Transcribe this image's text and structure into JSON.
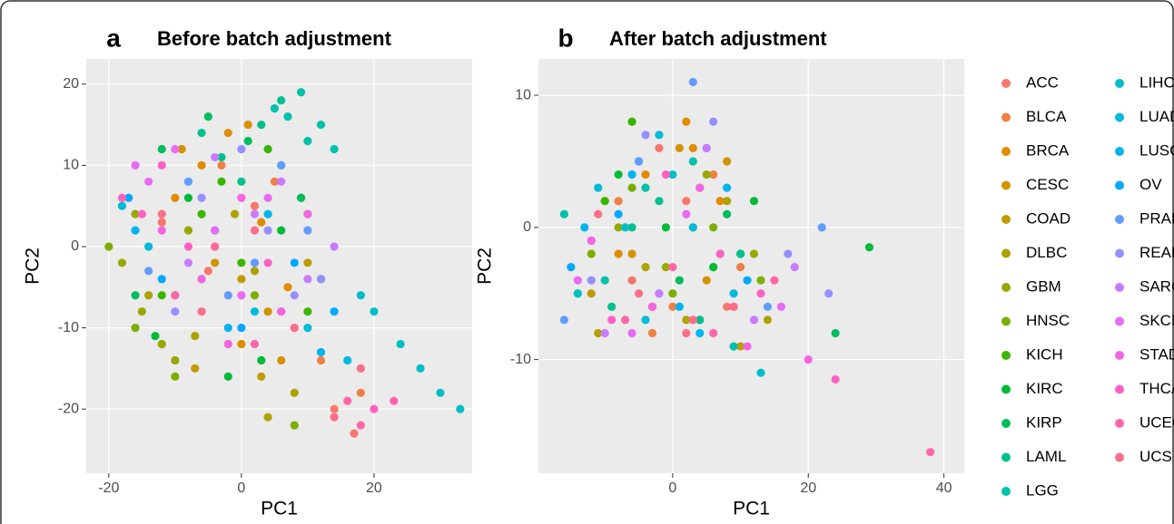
{
  "chart_data": [
    {
      "type": "scatter",
      "panel": "a",
      "title": "Before batch adjustment",
      "xlabel": "PC1",
      "ylabel": "PC2",
      "xlim": [
        -23.4,
        34.8
      ],
      "ylim": [
        -27.9,
        23.1
      ],
      "xticks": [
        -20,
        0,
        20
      ],
      "yticks": [
        -20,
        -10,
        0,
        10,
        20
      ],
      "grid": true,
      "series": [
        {
          "x": [
            -5,
            2,
            8,
            14,
            17,
            -12
          ],
          "values": [
            -3,
            5,
            -10,
            -20,
            -23,
            3
          ]
        },
        {
          "x": [
            -8,
            0,
            5,
            12,
            18,
            -3
          ],
          "values": [
            2,
            -6,
            8,
            -14,
            -18,
            10
          ]
        },
        {
          "x": [
            -6,
            -2,
            3,
            7,
            -10,
            0
          ],
          "values": [
            10,
            14,
            3,
            -5,
            6,
            -12
          ]
        },
        {
          "x": [
            -4,
            4,
            9,
            -9,
            1,
            6
          ],
          "values": [
            -2,
            -8,
            6,
            12,
            15,
            -14
          ]
        },
        {
          "x": [
            -2,
            3,
            6,
            0,
            -7,
            10
          ],
          "values": [
            -12,
            -16,
            -8,
            -4,
            -15,
            -2
          ]
        },
        {
          "x": [
            -14,
            -7,
            2,
            8,
            4,
            -1
          ],
          "values": [
            -6,
            -11,
            -3,
            -18,
            -21,
            4
          ]
        },
        {
          "x": [
            -18,
            -15,
            -12,
            -8,
            -10,
            -16
          ],
          "values": [
            -2,
            -8,
            -12,
            2,
            -14,
            4
          ]
        },
        {
          "x": [
            -16,
            -10,
            -4,
            2,
            8,
            -20
          ],
          "values": [
            -10,
            -16,
            0,
            -6,
            -22,
            0
          ]
        },
        {
          "x": [
            -6,
            -3,
            0,
            4,
            10,
            -12
          ],
          "values": [
            4,
            8,
            -2,
            12,
            -8,
            -6
          ]
        },
        {
          "x": [
            -2,
            -8,
            6,
            3,
            -13,
            12
          ],
          "values": [
            -16,
            6,
            2,
            -14,
            -11,
            -4
          ]
        },
        {
          "x": [
            -12,
            -5,
            1,
            6,
            -16,
            9
          ],
          "values": [
            12,
            16,
            13,
            10,
            -6,
            6
          ]
        },
        {
          "x": [
            -3,
            3,
            6,
            -6,
            0,
            10
          ],
          "values": [
            11,
            15,
            18,
            14,
            8,
            4
          ]
        },
        {
          "x": [
            5,
            9,
            12,
            14,
            10,
            7
          ],
          "values": [
            17,
            19,
            15,
            12,
            13,
            16
          ]
        },
        {
          "x": [
            20,
            24,
            27,
            30,
            33,
            18
          ],
          "values": [
            -8,
            -12,
            -15,
            -18,
            -20,
            -6
          ]
        },
        {
          "x": [
            -14,
            -6,
            2,
            10,
            -18,
            16
          ],
          "values": [
            0,
            -4,
            -8,
            -10,
            5,
            -14
          ]
        },
        {
          "x": [
            -16,
            -10,
            -2,
            4,
            12,
            -8
          ],
          "values": [
            2,
            -6,
            -10,
            4,
            -13,
            8
          ]
        },
        {
          "x": [
            -12,
            -4,
            0,
            8,
            14,
            -17
          ],
          "values": [
            -4,
            2,
            -10,
            -2,
            -8,
            6
          ]
        },
        {
          "x": [
            -8,
            2,
            6,
            10,
            -2,
            -14
          ],
          "values": [
            8,
            -2,
            10,
            2,
            -6,
            -3
          ]
        },
        {
          "x": [
            -6,
            0,
            4,
            8,
            12,
            -10
          ],
          "values": [
            6,
            12,
            2,
            -6,
            -4,
            -8
          ]
        },
        {
          "x": [
            -8,
            2,
            6,
            10,
            -4,
            14
          ],
          "values": [
            -2,
            4,
            8,
            -4,
            11,
            0
          ]
        },
        {
          "x": [
            -14,
            -10,
            -4,
            4,
            -16,
            0
          ],
          "values": [
            8,
            12,
            2,
            6,
            10,
            -6
          ]
        },
        {
          "x": [
            -12,
            -6,
            0,
            6,
            -2,
            10
          ],
          "values": [
            2,
            -4,
            6,
            -8,
            -12,
            4
          ]
        },
        {
          "x": [
            -18,
            -15,
            -12,
            -8,
            4,
            20
          ],
          "values": [
            6,
            4,
            10,
            0,
            -2,
            -20
          ]
        },
        {
          "x": [
            -10,
            -4,
            2,
            16,
            18,
            23
          ],
          "values": [
            -6,
            0,
            -12,
            -19,
            -22,
            -19
          ]
        },
        {
          "x": [
            -12,
            -6,
            2,
            8,
            14,
            18
          ],
          "values": [
            4,
            -8,
            2,
            -10,
            -21,
            -15
          ]
        }
      ]
    },
    {
      "type": "scatter",
      "panel": "b",
      "title": "After batch adjustment",
      "xlabel": "PC1",
      "ylabel": "PC2",
      "xlim": [
        -19.8,
        43
      ],
      "ylim": [
        -18.6,
        12.75
      ],
      "xticks": [
        0,
        20,
        40
      ],
      "yticks": [
        -10,
        0,
        10
      ],
      "grid": true,
      "series": [
        {
          "x": [
            -6,
            2,
            8,
            -2,
            4
          ],
          "values": [
            -4,
            2,
            -6,
            6,
            -7
          ]
        },
        {
          "x": [
            -8,
            0,
            6,
            -3,
            10
          ],
          "values": [
            2,
            -6,
            4,
            -8,
            -3
          ]
        },
        {
          "x": [
            -4,
            2,
            7,
            -8,
            3
          ],
          "values": [
            4,
            8,
            2,
            -2,
            6
          ]
        },
        {
          "x": [
            -6,
            1,
            5,
            -10,
            8
          ],
          "values": [
            -2,
            6,
            -4,
            2,
            5
          ]
        },
        {
          "x": [
            -3,
            3,
            10,
            -12,
            6
          ],
          "values": [
            -6,
            0,
            -9,
            -5,
            -3
          ]
        },
        {
          "x": [
            -11,
            -4,
            2,
            8,
            14
          ],
          "values": [
            -8,
            -3,
            -7,
            2,
            -7
          ]
        },
        {
          "x": [
            -14,
            -8,
            -1,
            5,
            12
          ],
          "values": [
            -5,
            0,
            -3,
            4,
            -2
          ]
        },
        {
          "x": [
            -12,
            -6,
            0,
            6,
            13
          ],
          "values": [
            -2,
            3,
            -5,
            0,
            -4
          ]
        },
        {
          "x": [
            -10,
            -3,
            4,
            10,
            -6
          ],
          "values": [
            2,
            -6,
            3,
            -2,
            8
          ]
        },
        {
          "x": [
            -8,
            -1,
            6,
            12,
            29
          ],
          "values": [
            4,
            0,
            -3,
            2,
            -1.5
          ]
        },
        {
          "x": [
            -12,
            -5,
            1,
            8,
            24
          ],
          "values": [
            -1,
            5,
            -4,
            1,
            -8
          ]
        },
        {
          "x": [
            -9,
            -2,
            4,
            10,
            -6
          ],
          "values": [
            -6,
            2,
            -7,
            -2,
            0
          ]
        },
        {
          "x": [
            -16,
            -10,
            -4,
            3,
            9
          ],
          "values": [
            1,
            -4,
            3,
            5,
            -9
          ]
        },
        {
          "x": [
            -14,
            -7,
            0,
            7,
            13
          ],
          "values": [
            -5,
            0,
            4,
            -2,
            -11
          ]
        },
        {
          "x": [
            -11,
            -4,
            3,
            9,
            -2
          ],
          "values": [
            3,
            -7,
            0,
            -5,
            7
          ]
        },
        {
          "x": [
            -13,
            -6,
            1,
            8,
            4
          ],
          "values": [
            0,
            4,
            -6,
            3,
            -8
          ]
        },
        {
          "x": [
            -15,
            -8,
            -2,
            5,
            11
          ],
          "values": [
            -3,
            1,
            -5,
            6,
            -4
          ]
        },
        {
          "x": [
            -16,
            -5,
            3,
            14,
            22
          ],
          "values": [
            -7,
            5,
            11,
            -6,
            0
          ]
        },
        {
          "x": [
            -12,
            -4,
            6,
            17,
            23
          ],
          "values": [
            -4,
            7,
            8,
            -2,
            -5
          ]
        },
        {
          "x": [
            -10,
            -2,
            5,
            12,
            18
          ],
          "values": [
            -8,
            -5,
            6,
            -7,
            -3
          ]
        },
        {
          "x": [
            -14,
            -6,
            2,
            9,
            16
          ],
          "values": [
            -4,
            -8,
            1,
            -6,
            -6
          ]
        },
        {
          "x": [
            -12,
            -3,
            4,
            11,
            20
          ],
          "values": [
            -1,
            -6,
            3,
            -9,
            -10
          ]
        },
        {
          "x": [
            -9,
            -1,
            7,
            13,
            24
          ],
          "values": [
            -7,
            4,
            -2,
            -5,
            -11.5
          ]
        },
        {
          "x": [
            -7,
            0,
            6,
            15,
            38
          ],
          "values": [
            -7,
            -3,
            -8,
            -4,
            -17
          ]
        },
        {
          "x": [
            -5,
            2,
            9,
            -11,
            3
          ],
          "values": [
            -5,
            -8,
            -6,
            1,
            -7
          ]
        }
      ]
    }
  ],
  "legend": [
    {
      "name": "ACC",
      "color": "#F8766D"
    },
    {
      "name": "BLCA",
      "color": "#EE8043"
    },
    {
      "name": "BRCA",
      "color": "#E08B00"
    },
    {
      "name": "CESC",
      "color": "#D29300"
    },
    {
      "name": "COAD",
      "color": "#C09B00"
    },
    {
      "name": "DLBC",
      "color": "#AEA200"
    },
    {
      "name": "GBM",
      "color": "#96A900"
    },
    {
      "name": "HNSC",
      "color": "#7CAE00"
    },
    {
      "name": "KICH",
      "color": "#39B600"
    },
    {
      "name": "KIRC",
      "color": "#00BA38"
    },
    {
      "name": "KIRP",
      "color": "#00BD5C"
    },
    {
      "name": "LAML",
      "color": "#00C08B"
    },
    {
      "name": "LGG",
      "color": "#00C1AA"
    },
    {
      "name": "LIHC",
      "color": "#00BFC4"
    },
    {
      "name": "LUAD",
      "color": "#00BBDA"
    },
    {
      "name": "LUSC",
      "color": "#00B4EF"
    },
    {
      "name": "OV",
      "color": "#00A9FF"
    },
    {
      "name": "PRAD",
      "color": "#619CFF"
    },
    {
      "name": "READ",
      "color": "#9590FF"
    },
    {
      "name": "SARC",
      "color": "#C77CFF"
    },
    {
      "name": "SKCM",
      "color": "#E76BF3"
    },
    {
      "name": "STAD",
      "color": "#F564E3"
    },
    {
      "name": "THCA",
      "color": "#FF61C3"
    },
    {
      "name": "UCEC",
      "color": "#FF66A8"
    },
    {
      "name": "UCS",
      "color": "#FB6F8B"
    }
  ]
}
